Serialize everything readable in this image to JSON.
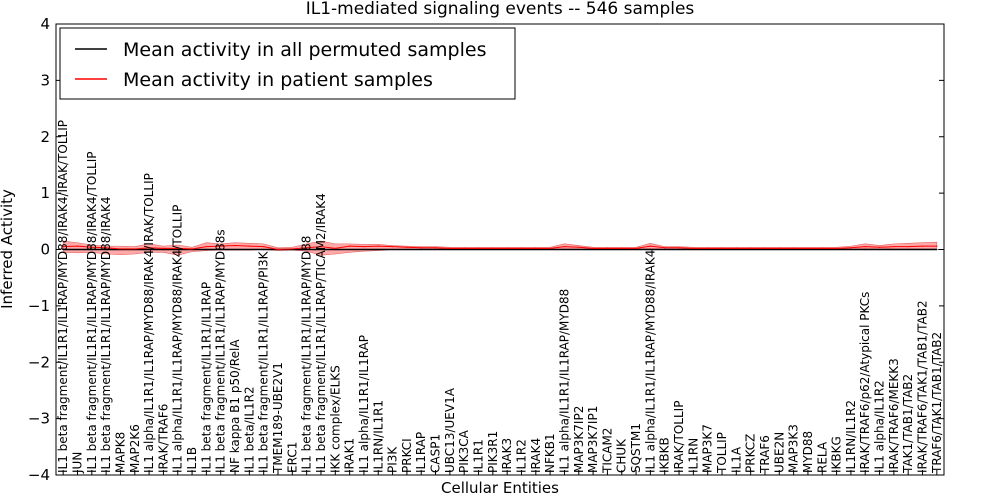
{
  "chart_data": {
    "type": "line",
    "title": "IL1-mediated signaling events -- 546 samples",
    "xlabel": "Cellular Entities",
    "ylabel": "Inferred Activity",
    "ylim": [
      -4,
      4
    ],
    "yticks": [
      -4,
      -3,
      -2,
      -1,
      0,
      1,
      2,
      3,
      4
    ],
    "ytick_labels": [
      "−4",
      "−3",
      "−2",
      "−1",
      "0",
      "1",
      "2",
      "3",
      "4"
    ],
    "legend": {
      "placement": "top-left",
      "entries": [
        {
          "label": "Mean activity in all permuted samples",
          "color": "#000000"
        },
        {
          "label": "Mean activity in patient samples",
          "color": "#ff0000"
        }
      ]
    },
    "colors": {
      "permuted": "#000000",
      "patient": "#ff0000",
      "band": "#ff9a9a"
    },
    "categories": [
      "IL1 beta fragment/IL1R1/IL1RAP/MYD88/IRAK4/IRAK/TOLLIP",
      "JUN",
      "IL1 beta fragment/IL1R1/IL1RAP/MYD88/IRAK4/TOLLIP",
      "IL1 beta fragment/IL1R1/IL1RAP/MYD88/IRAK4",
      "MAPK8",
      "MAP2K6",
      "IL1 alpha/IL1R1/IL1RAP/MYD88/IRAK4/IRAK/TOLLIP",
      "IRAK/TRAF6",
      "IL1 alpha/IL1R1/IL1RAP/MYD88/IRAK4/TOLLIP",
      "IL1B",
      "IL1 beta fragment/IL1R1/IL1RAP",
      "IL1 beta fragment/IL1R1/IL1RAP/MYD88s",
      "NF kappa B1 p50/RelA",
      "IL1 beta/IL1R2",
      "IL1 beta fragment/IL1R1/IL1RAP/PI3K",
      "TMEM189-UBE2V1",
      "ERC1",
      "IL1 beta fragment/IL1R1/IL1RAP/MYD88",
      "IL1 beta fragment/IL1R1/IL1RAP/TICAM2/IRAK4",
      "IKK complex/ELKS",
      "IRAK1",
      "IL1 alpha/IL1R1/IL1RAP",
      "IL1RN/IL1R1",
      "PI3K",
      "PRKCI",
      "IL1RAP",
      "CASP1",
      "UBC13/UEV1A",
      "PIK3CA",
      "IL1R1",
      "PIK3R1",
      "IRAK3",
      "IL1R2",
      "IRAK4",
      "NFKB1",
      "IL1 alpha/IL1R1/IL1RAP/MYD88",
      "MAP3K7IP2",
      "MAP3K7IP1",
      "TICAM2",
      "CHUK",
      "SQSTM1",
      "IL1 alpha/IL1R1/IL1RAP/MYD88/IRAK4",
      "IKBKB",
      "IRAK/TOLLIP",
      "IL1RN",
      "MAP3K7",
      "TOLLIP",
      "IL1A",
      "PRKCZ",
      "TRAF6",
      "UBE2N",
      "MAP3K3",
      "MYD88",
      "RELA",
      "IKBKG",
      "IL1RN/IL1R2",
      "IRAK/TRAF6/p62/Atypical PKCs",
      "IL1 alpha/IL1R2",
      "IRAK/TRAF6/MEKK3",
      "TAK1/TAB1/TAB2",
      "IRAK/TRAF6/TAK1/TAB1/TAB2",
      "TRAF6/TAK1/TAB1/TAB2"
    ],
    "series": [
      {
        "name": "Mean activity in all permuted samples",
        "values": [
          0,
          0,
          0,
          0,
          0,
          0,
          0,
          0,
          0,
          0,
          0,
          0,
          0,
          0,
          0,
          0,
          0,
          0,
          0,
          0,
          0,
          0,
          0,
          0,
          0,
          0,
          0,
          0,
          0,
          0,
          0,
          0,
          0,
          0,
          0,
          0,
          0,
          0,
          0,
          0,
          0,
          0,
          0,
          0,
          0,
          0,
          0,
          0,
          0,
          0,
          0,
          0,
          0,
          0,
          0,
          0,
          0,
          0,
          0,
          0,
          0,
          0
        ]
      },
      {
        "name": "Mean activity in patient samples",
        "values": [
          0.05,
          0.06,
          0.04,
          0.03,
          0.01,
          0.01,
          0.03,
          0.02,
          0.02,
          0.01,
          0.05,
          0.06,
          0.07,
          0.06,
          0.05,
          0.0,
          0.01,
          0.03,
          0.05,
          0.02,
          0.06,
          0.05,
          0.06,
          0.05,
          0.04,
          0.03,
          0.03,
          0.02,
          0.02,
          0.02,
          0.02,
          0.02,
          0.02,
          0.02,
          0.02,
          0.05,
          0.04,
          0.02,
          0.02,
          0.02,
          0.02,
          0.06,
          0.03,
          0.03,
          0.02,
          0.02,
          0.02,
          0.02,
          0.02,
          0.02,
          0.02,
          0.02,
          0.02,
          0.02,
          0.02,
          0.03,
          0.05,
          0.04,
          0.05,
          0.05,
          0.06,
          0.06
        ]
      }
    ],
    "band_lower": [
      -0.05,
      -0.06,
      -0.05,
      -0.08,
      -0.09,
      -0.08,
      -0.05,
      -0.05,
      -0.1,
      -0.04,
      -0.02,
      -0.01,
      -0.01,
      -0.01,
      0.0,
      -0.02,
      -0.01,
      -0.03,
      -0.1,
      -0.08,
      -0.05,
      -0.03,
      -0.02,
      0.0,
      0.01,
      0.01,
      0.01,
      0.01,
      0.01,
      0.01,
      0.01,
      0.01,
      0.01,
      0.01,
      0.01,
      0.01,
      0.01,
      0.01,
      0.01,
      0.01,
      0.01,
      0.02,
      0.01,
      0.01,
      0.01,
      0.01,
      0.01,
      0.01,
      0.01,
      0.01,
      0.01,
      0.01,
      0.01,
      0.01,
      0.01,
      0.01,
      0.02,
      0.01,
      0.02,
      0.02,
      0.02,
      0.02
    ],
    "band_upper": [
      0.15,
      0.12,
      0.08,
      0.06,
      0.06,
      0.05,
      0.1,
      0.06,
      0.08,
      0.04,
      0.12,
      0.1,
      0.12,
      0.11,
      0.1,
      0.03,
      0.04,
      0.1,
      0.15,
      0.1,
      0.1,
      0.09,
      0.09,
      0.07,
      0.06,
      0.05,
      0.05,
      0.04,
      0.04,
      0.04,
      0.04,
      0.04,
      0.04,
      0.04,
      0.04,
      0.1,
      0.07,
      0.04,
      0.04,
      0.04,
      0.04,
      0.11,
      0.05,
      0.05,
      0.04,
      0.04,
      0.04,
      0.04,
      0.04,
      0.04,
      0.04,
      0.04,
      0.04,
      0.04,
      0.04,
      0.06,
      0.1,
      0.07,
      0.1,
      0.11,
      0.12,
      0.13
    ]
  }
}
